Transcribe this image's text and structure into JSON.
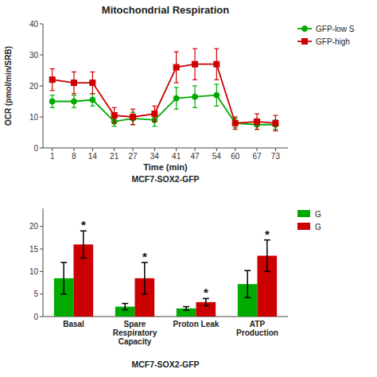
{
  "chart_data": [
    {
      "type": "line",
      "title": "Mitochondrial Respiration",
      "x_label": "Time (min)",
      "y_label": "OCR (pmol/min/SRB)",
      "x": [
        1,
        8,
        14,
        21,
        27,
        34,
        41,
        47,
        54,
        60,
        67,
        73
      ],
      "xlim": [
        -2,
        77
      ],
      "xticks": [
        1,
        8,
        14,
        21,
        27,
        34,
        41,
        47,
        54,
        60,
        67,
        73
      ],
      "ylim": [
        0,
        40
      ],
      "yticks": [
        0,
        10,
        20,
        30,
        40
      ],
      "grid": false,
      "legend": "right",
      "series": [
        {
          "name": "GFP-low S",
          "color": "#00aa00",
          "marker": "circle",
          "values": [
            15.0,
            15.0,
            15.5,
            8.5,
            9.5,
            9.0,
            16.0,
            16.5,
            17.0,
            8.0,
            7.5,
            7.5
          ],
          "errors": [
            2.0,
            2.0,
            2.0,
            1.5,
            2.0,
            2.0,
            3.5,
            3.5,
            3.5,
            1.5,
            1.5,
            1.5
          ]
        },
        {
          "name": "GFP-high",
          "color": "#cc0000",
          "marker": "square",
          "values": [
            22.0,
            21.0,
            21.0,
            10.5,
            10.0,
            11.0,
            26.0,
            27.0,
            27.0,
            8.0,
            8.5,
            8.0
          ],
          "errors": [
            3.5,
            3.5,
            3.5,
            2.5,
            2.5,
            2.5,
            5.0,
            5.0,
            5.0,
            2.0,
            2.5,
            2.5
          ]
        }
      ],
      "annotations": [
        {
          "text": "MCF7-SOX2-GFP"
        }
      ]
    },
    {
      "type": "bar",
      "categories": [
        "Basal",
        "Spare Respiratory Capacity",
        "Proton Leak",
        "ATP Production"
      ],
      "ylim": [
        0,
        24
      ],
      "yticks": [
        0,
        5,
        10,
        15,
        20
      ],
      "grid": false,
      "legend": "right",
      "series": [
        {
          "name": "G",
          "color": "#00aa00",
          "values": [
            8.5,
            2.2,
            1.8,
            7.2
          ],
          "errors": [
            3.5,
            0.7,
            0.4,
            3.0
          ]
        },
        {
          "name": "G",
          "color": "#cc0000",
          "values": [
            16.0,
            8.5,
            3.2,
            13.5
          ],
          "errors": [
            3.0,
            3.5,
            0.8,
            3.5
          ]
        }
      ],
      "annotations": [
        {
          "text": "MCF7-SOX2-GFP"
        },
        {
          "text": "*",
          "category": "Basal",
          "series": 1
        },
        {
          "text": "*",
          "category": "Spare Respiratory Capacity",
          "series": 1
        },
        {
          "text": "*",
          "category": "Proton Leak",
          "series": 1
        },
        {
          "text": "*",
          "category": "ATP Production",
          "series": 1
        }
      ]
    }
  ]
}
